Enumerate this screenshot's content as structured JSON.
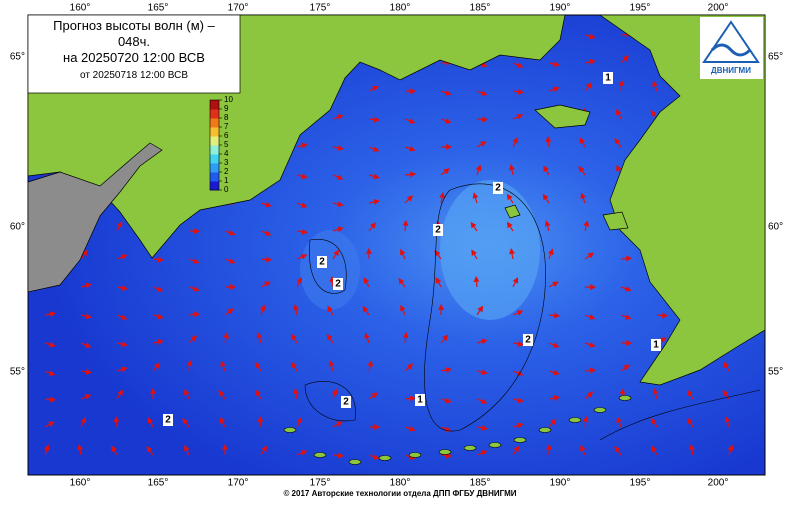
{
  "title": "Прогноз высоты волн (м) – 048ч.",
  "valid": "на 20250720 12:00 ВСВ",
  "issued": "от 20250718 12:00 ВСВ",
  "legend": {
    "ticks": [
      0,
      1,
      2,
      3,
      4,
      5,
      6,
      7,
      8,
      9,
      10
    ],
    "colors": [
      "#1a1ad0",
      "#1f5cf0",
      "#2f9cf5",
      "#43d2f0",
      "#8ff0d8",
      "#e0f07a",
      "#f5c030",
      "#f07a18",
      "#e0301a",
      "#b01010"
    ]
  },
  "lon_labels": [
    "160°",
    "165°",
    "170°",
    "175°",
    "180°",
    "185°",
    "190°",
    "195°",
    "200°"
  ],
  "lat_labels": [
    "65°",
    "60°",
    "55°"
  ],
  "contour_labels": [
    "1",
    "2",
    "2",
    "2",
    "2",
    "2",
    "2",
    "1",
    "1",
    "2"
  ],
  "logo": "ДВНИГМИ",
  "footer": "© 2017 Авторские технологии отдела ДПП ФГБУ ДВНИГМИ"
}
